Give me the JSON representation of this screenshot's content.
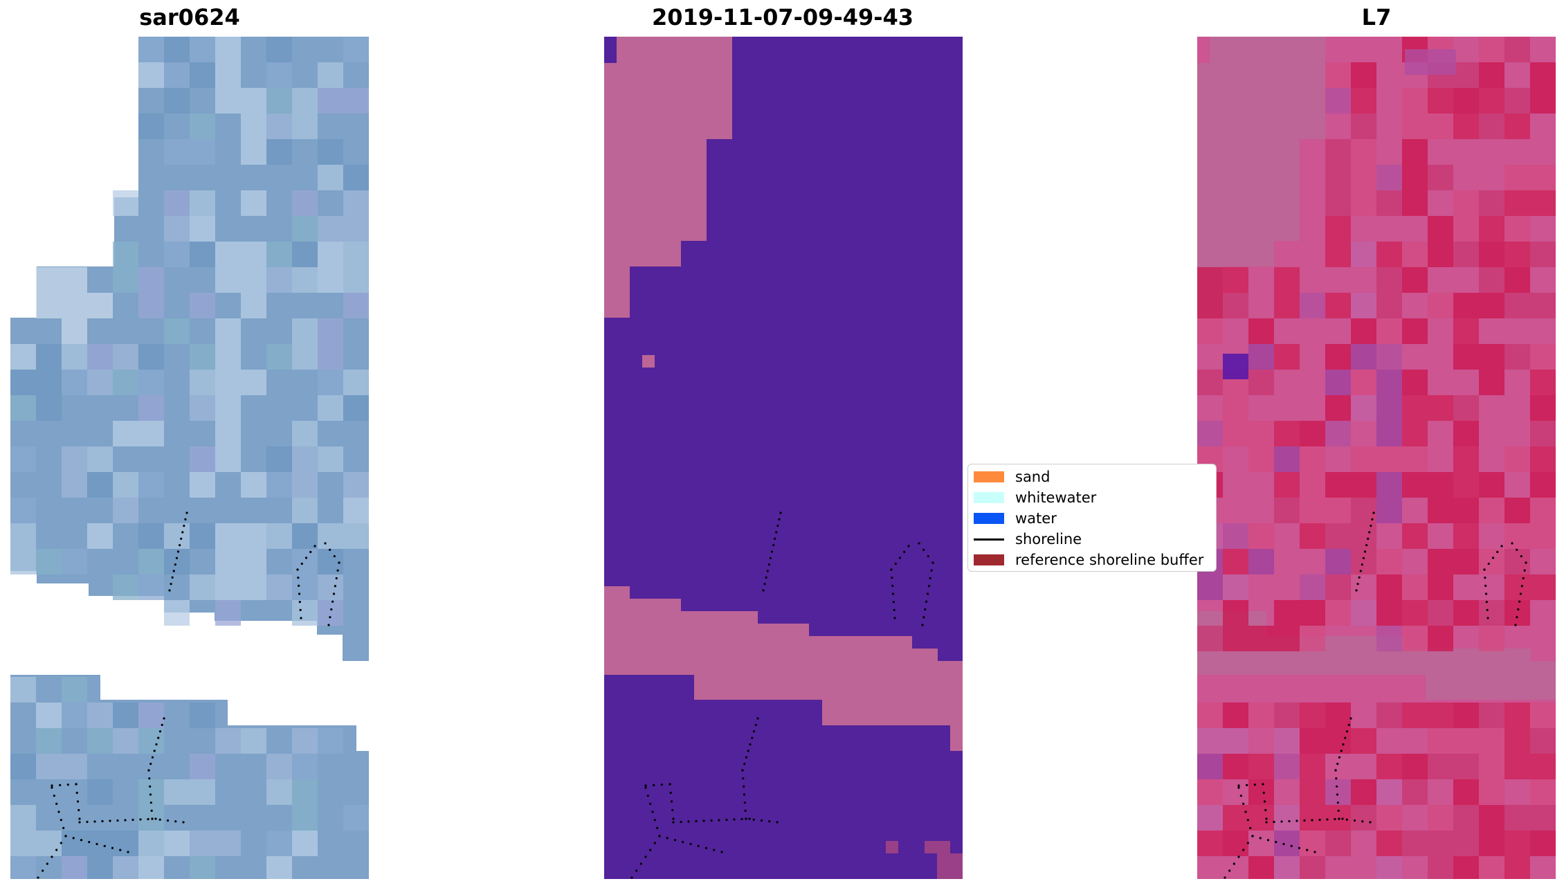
{
  "panels": [
    {
      "title": "sar0624"
    },
    {
      "title": "2019-11-07-09-49-43"
    },
    {
      "title": "L7"
    }
  ],
  "legend": {
    "items": [
      {
        "label": "sand",
        "color": "#fd8a3c",
        "kind": "patch"
      },
      {
        "label": "whitewater",
        "color": "#c8fffb",
        "kind": "patch"
      },
      {
        "label": "water",
        "color": "#0a55f5",
        "kind": "patch"
      },
      {
        "label": "shoreline",
        "color": "#000000",
        "kind": "line"
      },
      {
        "label": "reference shoreline buffer",
        "color": "#9e2a2f",
        "kind": "patch"
      }
    ]
  },
  "colors": {
    "sar_base": "#7ea2c8",
    "sar_light": "#c9d8ea",
    "class_land": "#bd6596",
    "class_water": "#52239a",
    "l7_base": "#cc5592",
    "l7_red": "#cc1048",
    "shoreline_dots": "#000000"
  }
}
